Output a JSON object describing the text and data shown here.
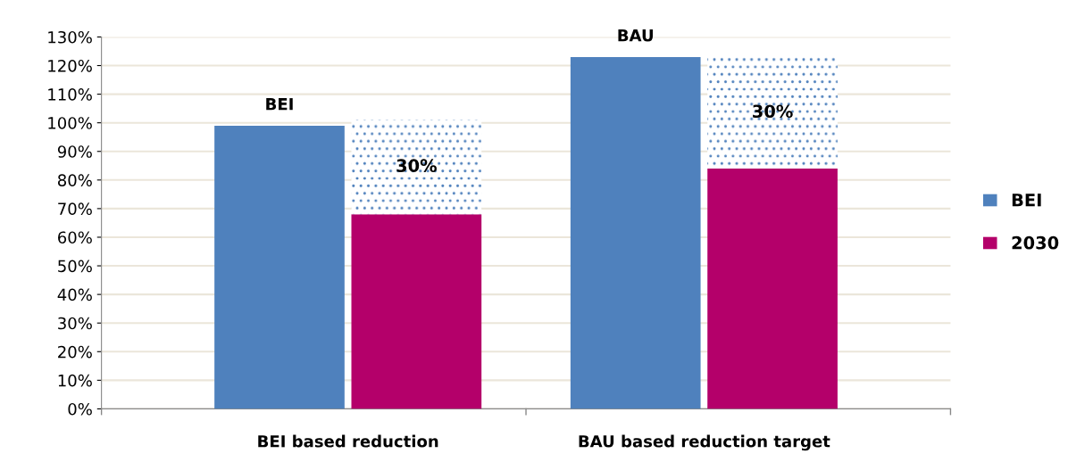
{
  "chart_data": {
    "type": "bar",
    "categories": [
      null,
      null,
      null,
      null
    ],
    "stacked": true,
    "series": [
      {
        "name": "BEI",
        "color": "#4f81bd",
        "values": [
          99,
          null,
          123,
          null
        ]
      },
      {
        "name": "2030",
        "color": "#b4006a",
        "values": [
          null,
          68,
          null,
          84
        ]
      },
      {
        "color": "#4f81bd",
        "values": [
          null,
          33,
          null,
          39
        ]
      }
    ],
    "ylim": [
      0,
      130
    ],
    "yticks": [
      {
        "value": 0,
        "label": "0%"
      },
      {
        "value": 10,
        "label": "10%"
      },
      {
        "value": 20,
        "label": "20%"
      },
      {
        "value": 30,
        "label": "30%"
      },
      {
        "value": 40,
        "label": "40%"
      },
      {
        "value": 50,
        "label": "50%"
      },
      {
        "value": 60,
        "label": "60%"
      },
      {
        "value": 70,
        "label": "70%"
      },
      {
        "value": 80,
        "label": "80%"
      },
      {
        "value": 90,
        "label": "90%"
      },
      {
        "value": 100,
        "label": "100%"
      },
      {
        "value": 110,
        "label": "110%"
      },
      {
        "value": 120,
        "label": "120%"
      },
      {
        "value": 130,
        "label": "130%"
      }
    ],
    "annotations": [
      "BEI based reduction",
      "BAU based reduction target",
      "BEI",
      "BAU",
      "30%",
      "30%"
    ],
    "grid": "y",
    "legend": "right"
  }
}
